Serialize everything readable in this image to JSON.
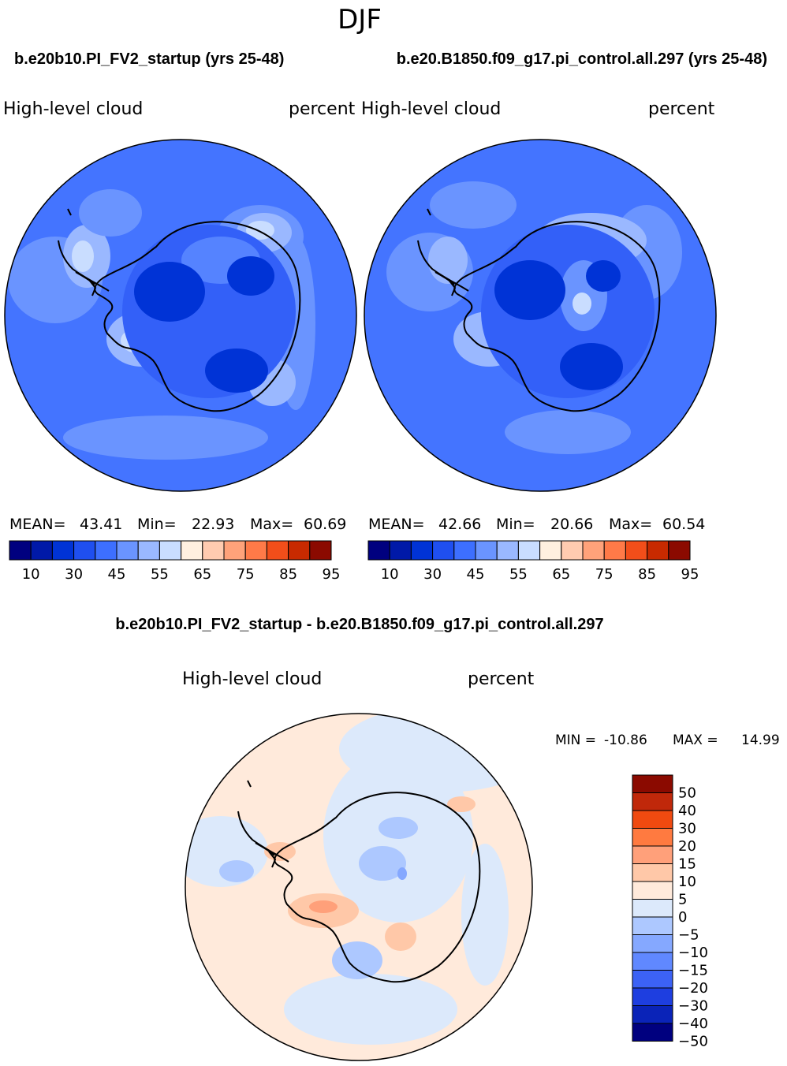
{
  "figure": {
    "season": "DJF"
  },
  "chart_data": [
    {
      "type": "heatmap",
      "title": "b.e20b10.PI_FV2_startup (yrs 25-48)",
      "variable": "High-level cloud",
      "units": "percent",
      "stats": {
        "mean_label": "MEAN=",
        "mean": "43.41",
        "min_label": "Min=",
        "min": "22.93",
        "max_label": "Max=",
        "max": "60.69"
      },
      "colorbar": {
        "ticks": [
          "10",
          "30",
          "45",
          "55",
          "65",
          "75",
          "85",
          "95"
        ],
        "colors": [
          "#00007f",
          "#0019a8",
          "#0033d6",
          "#1f4ff0",
          "#3d6fff",
          "#6a94ff",
          "#9ab8ff",
          "#c9ddff",
          "#fff0e0",
          "#ffcbb0",
          "#ffa27a",
          "#ff7a48",
          "#f24e1a",
          "#c82a00",
          "#8b0a00"
        ]
      }
    },
    {
      "type": "heatmap",
      "title": "b.e20.B1850.f09_g17.pi_control.all.297 (yrs 25-48)",
      "variable": "High-level cloud",
      "units": "percent",
      "stats": {
        "mean_label": "MEAN=",
        "mean": "42.66",
        "min_label": "Min=",
        "min": "20.66",
        "max_label": "Max=",
        "max": "60.54"
      },
      "colorbar": {
        "ticks": [
          "10",
          "30",
          "45",
          "55",
          "65",
          "75",
          "85",
          "95"
        ],
        "colors": [
          "#00007f",
          "#0019a8",
          "#0033d6",
          "#1f4ff0",
          "#3d6fff",
          "#6a94ff",
          "#9ab8ff",
          "#c9ddff",
          "#fff0e0",
          "#ffcbb0",
          "#ffa27a",
          "#ff7a48",
          "#f24e1a",
          "#c82a00",
          "#8b0a00"
        ]
      }
    },
    {
      "type": "heatmap",
      "title": "b.e20b10.PI_FV2_startup - b.e20.B1850.f09_g17.pi_control.all.297",
      "variable": "High-level cloud",
      "units": "percent",
      "minmax": {
        "min_label": "MIN =",
        "min": "-10.86",
        "max_label": "MAX =",
        "max": "14.99"
      },
      "colorbar": {
        "ticks": [
          "50",
          "40",
          "30",
          "20",
          "15",
          "10",
          "5",
          "0",
          "−5",
          "−10",
          "−15",
          "−20",
          "−30",
          "−40",
          "−50"
        ],
        "colors": [
          "#8b0a00",
          "#c0280a",
          "#f04a10",
          "#ff7a40",
          "#ffa07a",
          "#ffc8a8",
          "#ffeadb",
          "#dce9fb",
          "#adc8ff",
          "#85a8ff",
          "#6088ff",
          "#3c62f5",
          "#1e3ee0",
          "#0a23b8",
          "#00007f"
        ]
      }
    }
  ]
}
